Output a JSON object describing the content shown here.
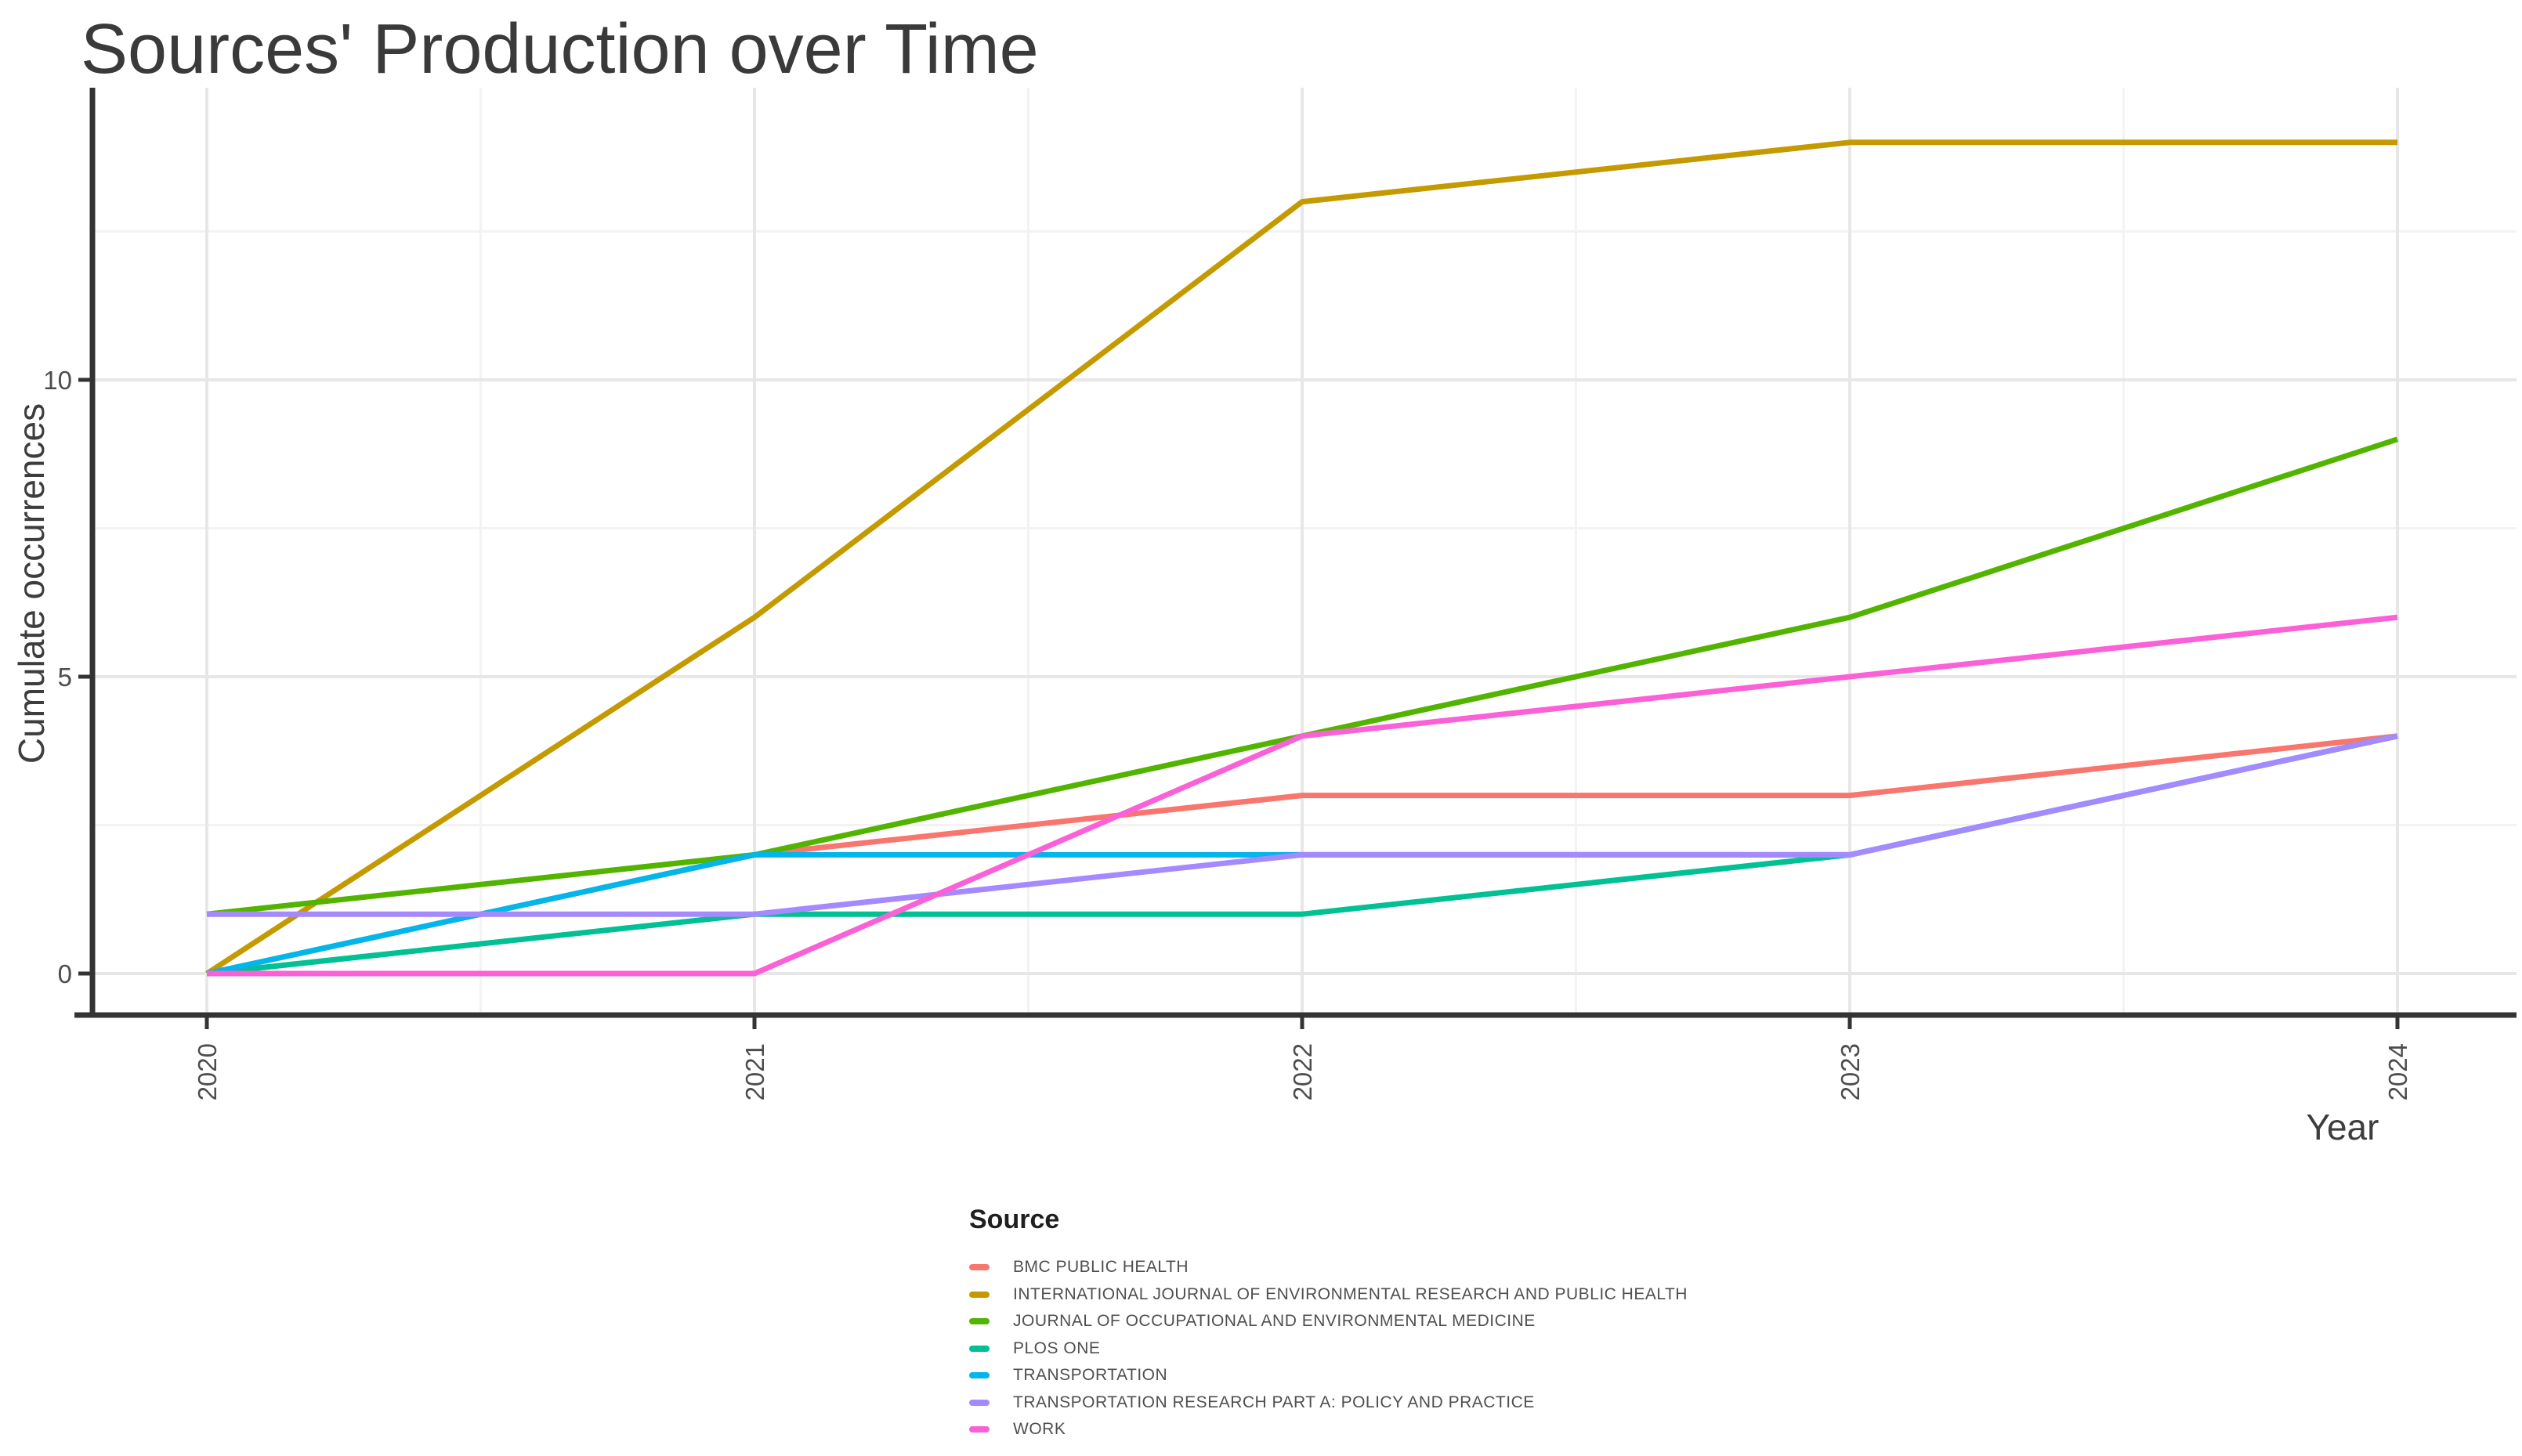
{
  "page": {
    "background": "#ffffff"
  },
  "chart_data": {
    "type": "line",
    "title": "Sources' Production over Time",
    "xlabel": "Year",
    "ylabel": "Cumulate occurrences",
    "x": [
      2020,
      2021,
      2022,
      2023,
      2024
    ],
    "x_tick_labels": [
      "2020",
      "2021",
      "2022",
      "2023",
      "2024"
    ],
    "y_ticks": [
      0,
      5,
      10
    ],
    "y_minor_ticks": [
      2.5,
      7.5,
      12.5
    ],
    "x_minor_ticks": [
      2020.5,
      2021.5,
      2022.5,
      2023.5
    ],
    "xlim": [
      2019.8,
      2024.2
    ],
    "ylim": [
      -0.7,
      14.9
    ],
    "grid": "on (major and minor, light gray on white)",
    "x_tick_label_rotation_deg": 90,
    "legend_position": "bottom-left",
    "legend_title": "Source",
    "series": [
      {
        "name": "BMC PUBLIC HEALTH",
        "color": "#F8766D",
        "values": [
          0,
          2,
          3,
          3,
          4
        ]
      },
      {
        "name": "INTERNATIONAL JOURNAL OF ENVIRONMENTAL RESEARCH AND PUBLIC HEALTH",
        "color": "#C49A00",
        "values": [
          0,
          6,
          13,
          14,
          14
        ]
      },
      {
        "name": "JOURNAL OF OCCUPATIONAL AND ENVIRONMENTAL MEDICINE",
        "color": "#53B400",
        "values": [
          1,
          2,
          4,
          6,
          9
        ]
      },
      {
        "name": "PLOS ONE",
        "color": "#00C094",
        "values": [
          0,
          1,
          1,
          2,
          4
        ]
      },
      {
        "name": "TRANSPORTATION",
        "color": "#00B6EB",
        "values": [
          0,
          2,
          2,
          2,
          4
        ]
      },
      {
        "name": "TRANSPORTATION RESEARCH PART A: POLICY AND PRACTICE",
        "color": "#A58AFF",
        "values": [
          1,
          1,
          2,
          2,
          4
        ]
      },
      {
        "name": "WORK",
        "color": "#FB61D7",
        "values": [
          0,
          0,
          4,
          5,
          6
        ]
      }
    ]
  },
  "style": {
    "axis_line_color": "#333333",
    "tick_color": "#333333",
    "tick_label_color": "#4d4d4d",
    "title_color": "#3a3a3a",
    "axis_title_color": "#3d3d3d",
    "grid_major_color": "#e7e7e7",
    "grid_minor_color": "#f3f3f3",
    "legend_text_color": "#4f4f4f"
  }
}
